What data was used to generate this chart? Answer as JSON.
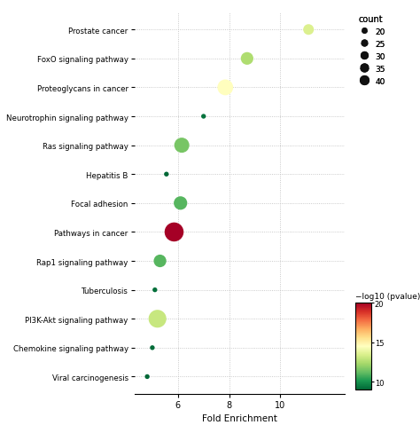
{
  "pathways": [
    "Prostate cancer",
    "FoxO signaling pathway",
    "Proteoglycans in cancer",
    "Neurotrophin signaling pathway",
    "Ras signaling pathway",
    "Hepatitis B",
    "Focal adhesion",
    "Pathways in cancer",
    "Rap1 signaling pathway",
    "Tuberculosis",
    "PI3K-Akt signaling pathway",
    "Chemokine signaling pathway",
    "Viral carcinogenesis"
  ],
  "fold_enrichment": [
    11.1,
    8.7,
    7.85,
    7.0,
    6.15,
    5.55,
    6.1,
    5.85,
    5.3,
    5.1,
    5.2,
    5.0,
    4.8
  ],
  "neg_log10_pvalue": [
    13.5,
    12.5,
    14.5,
    9.3,
    11.5,
    9.0,
    11.0,
    20.0,
    11.0,
    9.2,
    13.0,
    9.1,
    9.0
  ],
  "count": [
    18,
    22,
    30,
    10,
    28,
    10,
    24,
    40,
    22,
    10,
    36,
    10,
    10
  ],
  "xlabel": "Fold Enrichment",
  "colorbar_label": "−log10 (pvalue)",
  "count_label": "count",
  "cmap_min": 9,
  "cmap_max": 20,
  "count_legend_values": [
    20,
    25,
    30,
    35,
    40
  ],
  "background_color": "#ffffff",
  "grid_color": "#bbbbbb",
  "xlim_left": 4.3,
  "xlim_right": 12.5,
  "xticks": [
    6,
    8,
    10
  ]
}
